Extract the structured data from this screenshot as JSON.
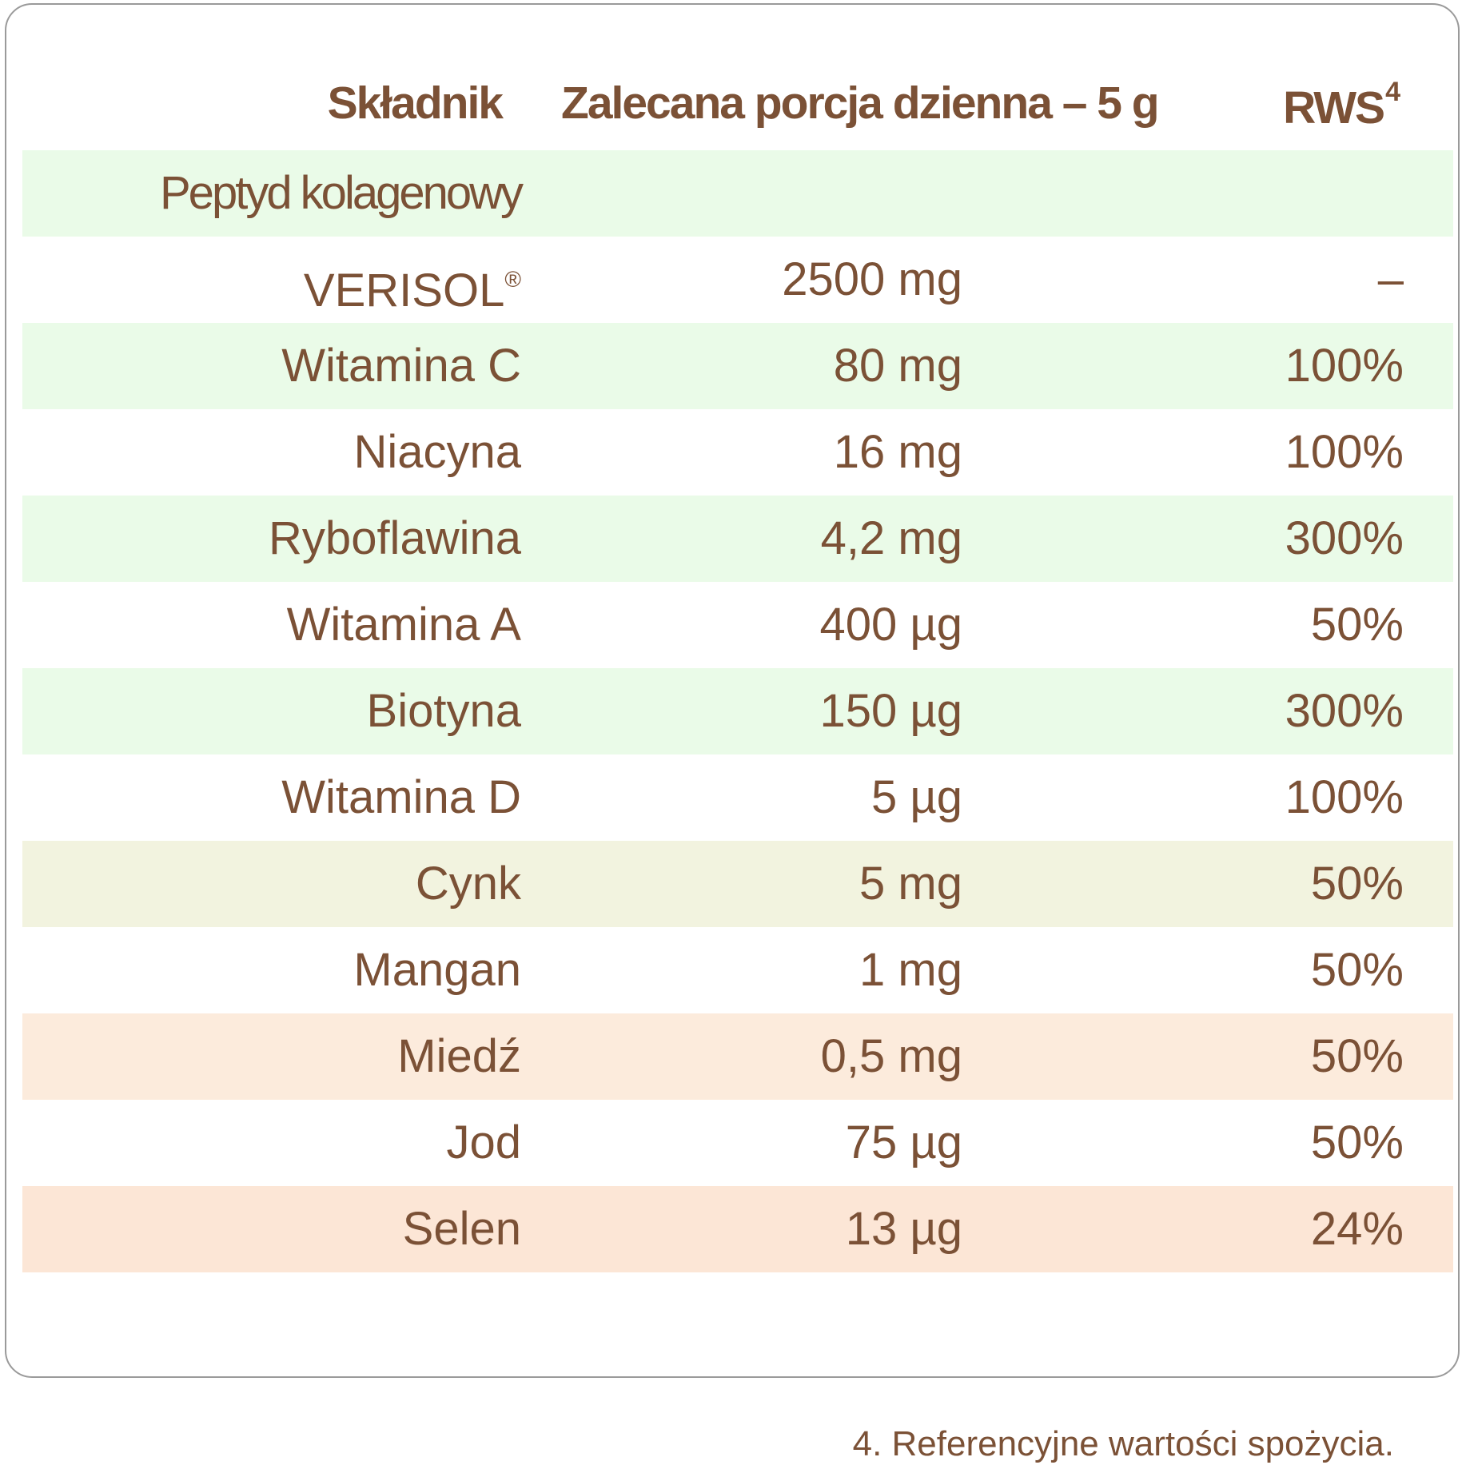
{
  "table": {
    "headers": {
      "ingredient": "Składnik",
      "portion": "Zalecana porcja dzienna – 5 g",
      "rws": "RWS",
      "rws_sup": "4"
    },
    "rows": [
      {
        "name": "Peptyd kolagenowy",
        "amount": "",
        "rws": "",
        "bg": "#eafbe8"
      },
      {
        "name": "VERISOL",
        "name_sup": "®",
        "amount": "2500 mg",
        "rws": "–",
        "bg": "#ffffff"
      },
      {
        "name": "Witamina C",
        "amount": "80 mg",
        "rws": "100%",
        "bg": "#eafbe8"
      },
      {
        "name": "Niacyna",
        "amount": "16 mg",
        "rws": "100%",
        "bg": "#ffffff"
      },
      {
        "name": "Ryboflawina",
        "amount": "4,2 mg",
        "rws": "300%",
        "bg": "#eafbe8"
      },
      {
        "name": "Witamina A",
        "amount": "400 µg",
        "rws": "50%",
        "bg": "#ffffff"
      },
      {
        "name": "Biotyna",
        "amount": "150 µg",
        "rws": "300%",
        "bg": "#eafbe8"
      },
      {
        "name": "Witamina D",
        "amount": "5 µg",
        "rws": "100%",
        "bg": "#ffffff"
      },
      {
        "name": "Cynk",
        "amount": "5 mg",
        "rws": "50%",
        "bg": "#f2f3df"
      },
      {
        "name": "Mangan",
        "amount": "1 mg",
        "rws": "50%",
        "bg": "#ffffff"
      },
      {
        "name": "Miedź",
        "amount": "0,5 mg",
        "rws": "50%",
        "bg": "#fcebdc"
      },
      {
        "name": "Jod",
        "amount": "75 µg",
        "rws": "50%",
        "bg": "#ffffff"
      },
      {
        "name": "Selen",
        "amount": "13 µg",
        "rws": "24%",
        "bg": "#fce6d6"
      }
    ]
  },
  "footnote": "4. Referencyjne wartości spożycia.",
  "colors": {
    "text": "#7b5136",
    "border": "#9a9a9a"
  }
}
